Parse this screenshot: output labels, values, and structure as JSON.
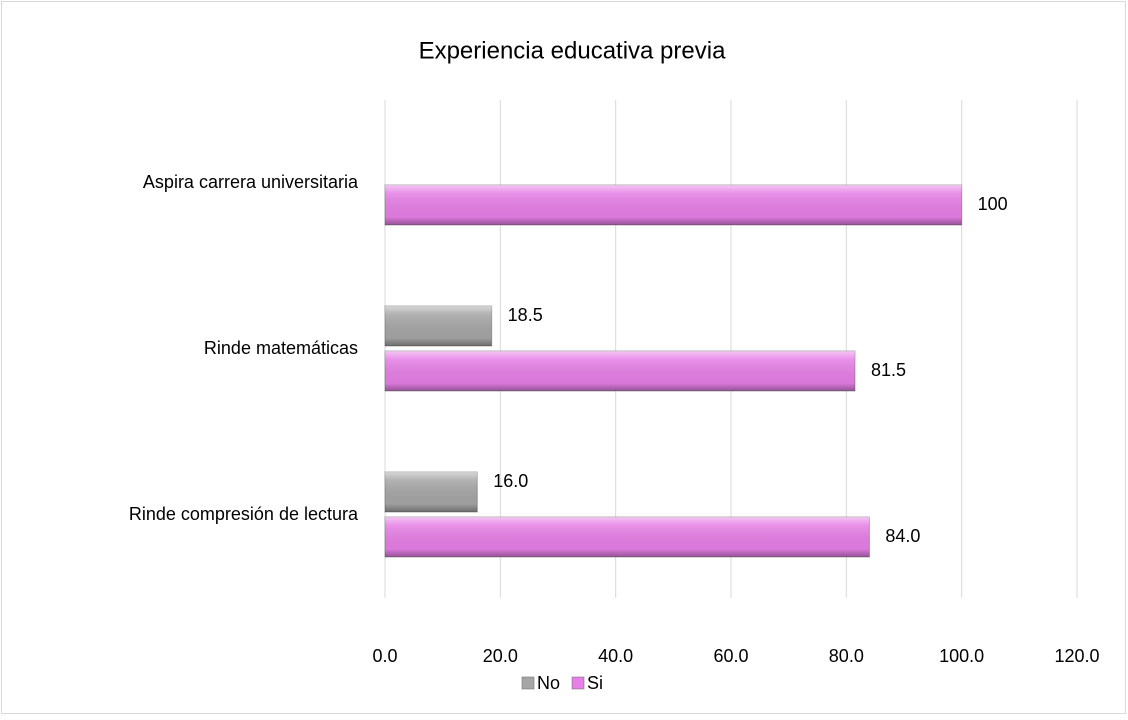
{
  "chart_data": {
    "type": "bar",
    "orientation": "horizontal",
    "title": "Experiencia educativa previa",
    "categories": [
      "Aspira carrera universitaria",
      "Rinde matemáticas",
      "Rinde compresión de lectura"
    ],
    "series": [
      {
        "name": "No",
        "color": "#a6a6a6",
        "values": [
          null,
          18.5,
          16.0
        ],
        "value_labels": [
          null,
          "18.5",
          "16.0"
        ]
      },
      {
        "name": "Si",
        "color": "#e67fe6",
        "values": [
          100,
          81.5,
          84.0
        ],
        "value_labels": [
          "100",
          "81.5",
          "84.0"
        ]
      }
    ],
    "xlim": [
      0,
      120
    ],
    "xticks": [
      {
        "value": 0,
        "label": "0.0"
      },
      {
        "value": 20,
        "label": "20.0"
      },
      {
        "value": 40,
        "label": "40.0"
      },
      {
        "value": 60,
        "label": "60.0"
      },
      {
        "value": 80,
        "label": "80.0"
      },
      {
        "value": 100,
        "label": "100.0"
      },
      {
        "value": 120,
        "label": "120.0"
      }
    ],
    "grid": true,
    "legend": "bottom"
  }
}
